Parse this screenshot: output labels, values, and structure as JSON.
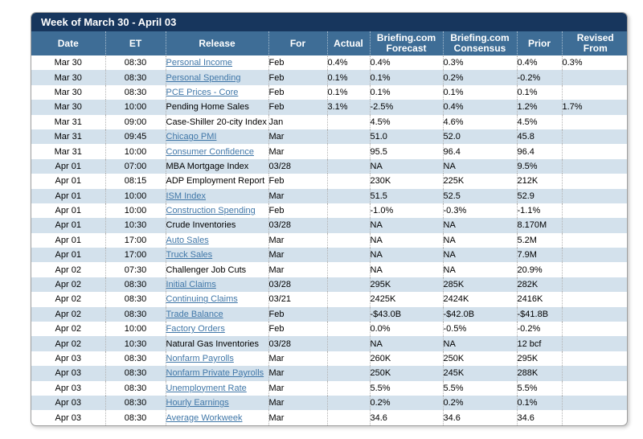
{
  "title": "Week of March 30 - April 03",
  "colors": {
    "title_bar_bg": "#17365D",
    "header_bg": "#3E6D96",
    "alt_row_bg": "#D3E1EC",
    "link": "#4077A8",
    "header_text": "#FFFFFF",
    "body_text": "#000000"
  },
  "table": {
    "columns": [
      {
        "key": "date",
        "label": "Date"
      },
      {
        "key": "et",
        "label": "ET"
      },
      {
        "key": "release",
        "label": "Release"
      },
      {
        "key": "for",
        "label": "For"
      },
      {
        "key": "actual",
        "label": "Actual"
      },
      {
        "key": "forecast",
        "label": "Briefing.com Forecast",
        "lines": [
          "Briefing.com",
          "Forecast"
        ]
      },
      {
        "key": "consensus",
        "label": "Briefing.com Consensus",
        "lines": [
          "Briefing.com",
          "Consensus"
        ]
      },
      {
        "key": "prior",
        "label": "Prior"
      },
      {
        "key": "revised",
        "label": "Revised From",
        "lines": [
          "Revised",
          "From"
        ]
      }
    ],
    "rows": [
      {
        "date": "Mar 30",
        "et": "08:30",
        "release": "Personal Income",
        "link": true,
        "for": "Feb",
        "actual": "0.4%",
        "forecast": "0.4%",
        "consensus": "0.3%",
        "prior": "0.4%",
        "revised": "0.3%"
      },
      {
        "date": "Mar 30",
        "et": "08:30",
        "release": "Personal Spending",
        "link": true,
        "for": "Feb",
        "actual": "0.1%",
        "forecast": "0.1%",
        "consensus": "0.2%",
        "prior": "-0.2%",
        "revised": ""
      },
      {
        "date": "Mar 30",
        "et": "08:30",
        "release": "PCE Prices - Core",
        "link": true,
        "for": "Feb",
        "actual": "0.1%",
        "forecast": "0.1%",
        "consensus": "0.1%",
        "prior": "0.1%",
        "revised": ""
      },
      {
        "date": "Mar 30",
        "et": "10:00",
        "release": "Pending Home Sales",
        "link": false,
        "for": "Feb",
        "actual": "3.1%",
        "forecast": "-2.5%",
        "consensus": "0.4%",
        "prior": "1.2%",
        "revised": "1.7%"
      },
      {
        "date": "Mar 31",
        "et": "09:00",
        "release": "Case-Shiller 20-city Index",
        "link": false,
        "for": "Jan",
        "actual": "",
        "forecast": "4.5%",
        "consensus": "4.6%",
        "prior": "4.5%",
        "revised": ""
      },
      {
        "date": "Mar 31",
        "et": "09:45",
        "release": "Chicago PMI",
        "link": true,
        "for": "Mar",
        "actual": "",
        "forecast": "51.0",
        "consensus": "52.0",
        "prior": "45.8",
        "revised": ""
      },
      {
        "date": "Mar 31",
        "et": "10:00",
        "release": "Consumer Confidence",
        "link": true,
        "for": "Mar",
        "actual": "",
        "forecast": "95.5",
        "consensus": "96.4",
        "prior": "96.4",
        "revised": ""
      },
      {
        "date": "Apr 01",
        "et": "07:00",
        "release": "MBA Mortgage Index",
        "link": false,
        "for": "03/28",
        "actual": "",
        "forecast": "NA",
        "consensus": "NA",
        "prior": "9.5%",
        "revised": ""
      },
      {
        "date": "Apr 01",
        "et": "08:15",
        "release": "ADP Employment Report",
        "link": false,
        "for": "Feb",
        "actual": "",
        "forecast": "230K",
        "consensus": "225K",
        "prior": "212K",
        "revised": ""
      },
      {
        "date": "Apr 01",
        "et": "10:00",
        "release": "ISM Index",
        "link": true,
        "for": "Mar",
        "actual": "",
        "forecast": "51.5",
        "consensus": "52.5",
        "prior": "52.9",
        "revised": ""
      },
      {
        "date": "Apr 01",
        "et": "10:00",
        "release": "Construction Spending",
        "link": true,
        "for": "Feb",
        "actual": "",
        "forecast": "-1.0%",
        "consensus": "-0.3%",
        "prior": "-1.1%",
        "revised": ""
      },
      {
        "date": "Apr 01",
        "et": "10:30",
        "release": "Crude Inventories",
        "link": false,
        "for": "03/28",
        "actual": "",
        "forecast": "NA",
        "consensus": "NA",
        "prior": "8.170M",
        "revised": ""
      },
      {
        "date": "Apr 01",
        "et": "17:00",
        "release": "Auto Sales",
        "link": true,
        "for": "Mar",
        "actual": "",
        "forecast": "NA",
        "consensus": "NA",
        "prior": "5.2M",
        "revised": ""
      },
      {
        "date": "Apr 01",
        "et": "17:00",
        "release": "Truck Sales",
        "link": true,
        "for": "Mar",
        "actual": "",
        "forecast": "NA",
        "consensus": "NA",
        "prior": "7.9M",
        "revised": ""
      },
      {
        "date": "Apr 02",
        "et": "07:30",
        "release": "Challenger Job Cuts",
        "link": false,
        "for": "Mar",
        "actual": "",
        "forecast": "NA",
        "consensus": "NA",
        "prior": "20.9%",
        "revised": ""
      },
      {
        "date": "Apr 02",
        "et": "08:30",
        "release": "Initial Claims",
        "link": true,
        "for": "03/28",
        "actual": "",
        "forecast": "295K",
        "consensus": "285K",
        "prior": "282K",
        "revised": ""
      },
      {
        "date": "Apr 02",
        "et": "08:30",
        "release": "Continuing Claims",
        "link": true,
        "for": "03/21",
        "actual": "",
        "forecast": "2425K",
        "consensus": "2424K",
        "prior": "2416K",
        "revised": ""
      },
      {
        "date": "Apr 02",
        "et": "08:30",
        "release": "Trade Balance",
        "link": true,
        "for": "Feb",
        "actual": "",
        "forecast": "-$43.0B",
        "consensus": "-$42.0B",
        "prior": "-$41.8B",
        "revised": ""
      },
      {
        "date": "Apr 02",
        "et": "10:00",
        "release": "Factory Orders",
        "link": true,
        "for": "Feb",
        "actual": "",
        "forecast": "0.0%",
        "consensus": "-0.5%",
        "prior": "-0.2%",
        "revised": ""
      },
      {
        "date": "Apr 02",
        "et": "10:30",
        "release": "Natural Gas Inventories",
        "link": false,
        "for": "03/28",
        "actual": "",
        "forecast": "NA",
        "consensus": "NA",
        "prior": "12 bcf",
        "revised": ""
      },
      {
        "date": "Apr 03",
        "et": "08:30",
        "release": "Nonfarm Payrolls",
        "link": true,
        "for": "Mar",
        "actual": "",
        "forecast": "260K",
        "consensus": "250K",
        "prior": "295K",
        "revised": ""
      },
      {
        "date": "Apr 03",
        "et": "08:30",
        "release": "Nonfarm Private Payrolls",
        "link": true,
        "for": "Mar",
        "actual": "",
        "forecast": "250K",
        "consensus": "245K",
        "prior": "288K",
        "revised": ""
      },
      {
        "date": "Apr 03",
        "et": "08:30",
        "release": "Unemployment Rate",
        "link": true,
        "for": "Mar",
        "actual": "",
        "forecast": "5.5%",
        "consensus": "5.5%",
        "prior": "5.5%",
        "revised": ""
      },
      {
        "date": "Apr 03",
        "et": "08:30",
        "release": "Hourly Earnings",
        "link": true,
        "for": "Mar",
        "actual": "",
        "forecast": "0.2%",
        "consensus": "0.2%",
        "prior": "0.1%",
        "revised": ""
      },
      {
        "date": "Apr 03",
        "et": "08:30",
        "release": "Average Workweek",
        "link": true,
        "for": "Mar",
        "actual": "",
        "forecast": "34.6",
        "consensus": "34.6",
        "prior": "34.6",
        "revised": ""
      }
    ]
  }
}
